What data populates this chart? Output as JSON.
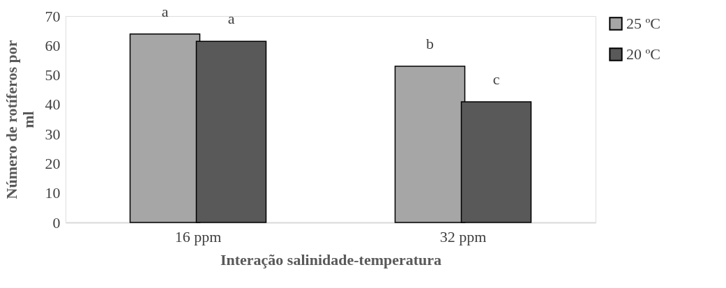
{
  "chart_data": {
    "type": "bar",
    "xlabel": "Interação salinidade-temperatura",
    "ylabel": "Número de rotíferos por ml",
    "categories": [
      "16 ppm",
      "32 ppm"
    ],
    "series": [
      {
        "name": "25 ºC",
        "color": "#a6a6a6",
        "values": [
          63.9,
          53.0
        ]
      },
      {
        "name": "20 ºC",
        "color": "#595959",
        "values": [
          61.4,
          40.9
        ]
      }
    ],
    "annotations": [
      {
        "text": "a",
        "x": "16 ppm",
        "y": 63.9
      },
      {
        "text": "a",
        "x": "16 ppm",
        "y": 61.4
      },
      {
        "text": "b",
        "x": "32 ppm",
        "y": 53.0
      },
      {
        "text": "c",
        "x": "32 ppm",
        "y": 40.9
      }
    ],
    "ylim": [
      0,
      70
    ],
    "yticks": [
      0,
      10,
      20,
      30,
      40,
      50,
      60,
      70
    ],
    "grid": false,
    "legend": "right"
  }
}
